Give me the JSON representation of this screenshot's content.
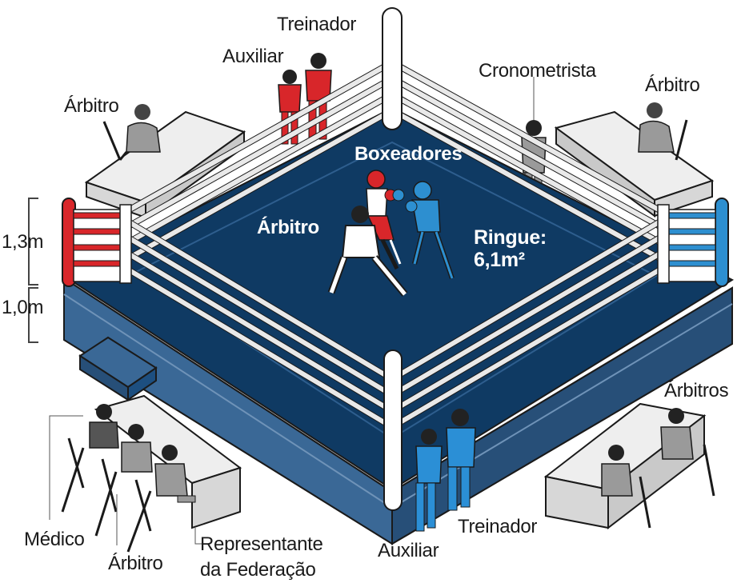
{
  "labels": {
    "treinador_top": "Treinador",
    "auxiliar_top": "Auxiliar",
    "cronometrista": "Cronometrista",
    "arbitro_left": "Árbitro",
    "arbitro_right": "Árbitro",
    "boxeadores": "Boxeadores",
    "arbitro_ring": "Árbitro",
    "ringue_line1": "Ringue:",
    "ringue_line2": "6,1m²",
    "height_ropes": "1,3m",
    "height_platform": "1,0m",
    "arbitros": "Árbitros",
    "medico": "Médico",
    "arbitro_bottom": "Árbitro",
    "representante_line1": "Representante",
    "representante_line2": "da Federação",
    "auxiliar_bottom": "Auxiliar",
    "treinador_bottom": "Treinador"
  },
  "colors": {
    "ring_canvas": "#0f3a63",
    "ring_side": "#1d4f80",
    "red_corner": "#d8262a",
    "blue_corner": "#2d8fd0",
    "rope": "#e9e9e9",
    "table": "#eeeeee",
    "figure_gray": "#9a9a9a",
    "coach_blue": "#2b8fd6",
    "coach_red": "#d8262a"
  }
}
